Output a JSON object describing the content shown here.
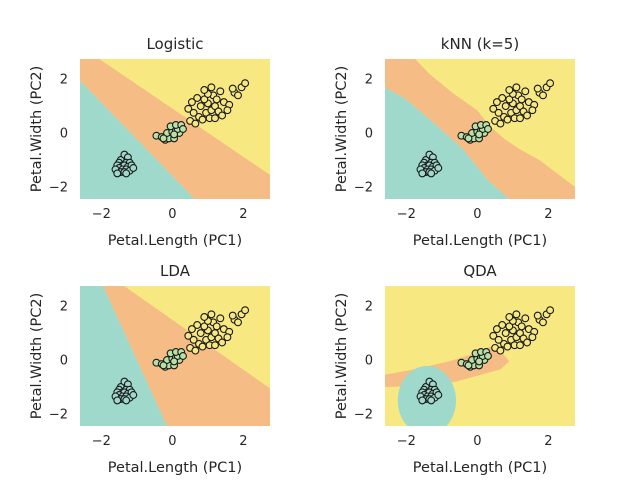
{
  "colors": {
    "setosa_region": "#9ed9cc",
    "versicolor_region": "#f6bc85",
    "virginica_region": "#f8e882",
    "setosa_point": "#9ed9cc",
    "versicolor_point": "#b9e0a5",
    "virginica_point": "#f8e882",
    "point_edge": "#1a1a1a"
  },
  "chart_data": [
    {
      "type": "scatter",
      "title": "Logistic",
      "xlabel": "Petal.Length (PC1)",
      "ylabel": "Petal.Width (PC2)",
      "xlim": [
        -2.6,
        2.75
      ],
      "ylim": [
        -2.45,
        2.75
      ],
      "xticks": [
        -2,
        0,
        2
      ],
      "yticks": [
        -2,
        0,
        2
      ],
      "xtick_labels": [
        "−2",
        "0",
        "2"
      ],
      "ytick_labels": [
        "−2",
        "0",
        "2"
      ],
      "regions": [
        {
          "class": "setosa",
          "polygon": [
            [
              -2.6,
              2.75
            ],
            [
              -2.6,
              -2.45
            ],
            [
              0.63,
              -2.45
            ],
            [
              -2.6,
              1.95
            ]
          ]
        },
        {
          "class": "versicolor",
          "polygon": [
            [
              -2.6,
              2.75
            ],
            [
              -2.6,
              1.95
            ],
            [
              0.63,
              -2.45
            ],
            [
              2.75,
              -2.45
            ],
            [
              2.75,
              -1.55
            ],
            [
              -2.05,
              2.75
            ]
          ]
        },
        {
          "class": "virginica",
          "polygon": [
            [
              -2.05,
              2.75
            ],
            [
              2.75,
              -1.55
            ],
            [
              2.75,
              2.75
            ]
          ]
        }
      ]
    },
    {
      "type": "scatter",
      "title": "kNN (k=5)",
      "xlabel": "Petal.Length (PC1)",
      "ylabel": "Petal.Width (PC2)",
      "xlim": [
        -2.6,
        2.75
      ],
      "ylim": [
        -2.45,
        2.75
      ],
      "xticks": [
        -2,
        0,
        2
      ],
      "yticks": [
        -2,
        0,
        2
      ],
      "xtick_labels": [
        "−2",
        "0",
        "2"
      ],
      "ytick_labels": [
        "−2",
        "0",
        "2"
      ],
      "regions": [
        {
          "class": "setosa",
          "polygon": [
            [
              -2.6,
              1.7
            ],
            [
              -2.6,
              -2.45
            ],
            [
              0.9,
              -2.45
            ],
            [
              0.3,
              -1.75
            ],
            [
              -0.4,
              -0.6
            ],
            [
              -1.2,
              0.35
            ],
            [
              -2.0,
              1.25
            ]
          ]
        },
        {
          "class": "versicolor",
          "polygon": [
            [
              -2.6,
              2.75
            ],
            [
              -2.6,
              1.7
            ],
            [
              -2.0,
              1.25
            ],
            [
              -1.2,
              0.35
            ],
            [
              -0.4,
              -0.6
            ],
            [
              0.3,
              -1.75
            ],
            [
              0.9,
              -2.45
            ],
            [
              2.75,
              -2.45
            ],
            [
              2.75,
              -2.0
            ],
            [
              1.75,
              -1.0
            ],
            [
              1.2,
              -0.6
            ],
            [
              0.8,
              -0.25
            ],
            [
              0.35,
              0.25
            ],
            [
              0.0,
              0.85
            ],
            [
              -0.7,
              1.5
            ],
            [
              -1.35,
              2.2
            ],
            [
              -1.75,
              2.75
            ]
          ]
        },
        {
          "class": "virginica",
          "polygon": [
            [
              -1.75,
              2.75
            ],
            [
              -1.35,
              2.2
            ],
            [
              -0.7,
              1.5
            ],
            [
              0.0,
              0.85
            ],
            [
              0.35,
              0.25
            ],
            [
              0.8,
              -0.25
            ],
            [
              1.2,
              -0.6
            ],
            [
              1.75,
              -1.0
            ],
            [
              2.75,
              -2.0
            ],
            [
              2.75,
              2.75
            ]
          ]
        }
      ]
    },
    {
      "type": "scatter",
      "title": "LDA",
      "xlabel": "Petal.Length (PC1)",
      "ylabel": "Petal.Width (PC2)",
      "xlim": [
        -2.6,
        2.75
      ],
      "ylim": [
        -2.45,
        2.75
      ],
      "xticks": [
        -2,
        0,
        2
      ],
      "yticks": [
        -2,
        0,
        2
      ],
      "xtick_labels": [
        "−2",
        "0",
        "2"
      ],
      "ytick_labels": [
        "−2",
        "0",
        "2"
      ],
      "regions": [
        {
          "class": "setosa",
          "polygon": [
            [
              -2.6,
              2.75
            ],
            [
              -2.6,
              -2.45
            ],
            [
              -0.15,
              -2.45
            ],
            [
              -1.95,
              2.75
            ]
          ]
        },
        {
          "class": "versicolor",
          "polygon": [
            [
              -1.95,
              2.75
            ],
            [
              -0.15,
              -2.45
            ],
            [
              2.75,
              -2.45
            ],
            [
              2.75,
              -1.05
            ],
            [
              -1.35,
              2.75
            ]
          ]
        },
        {
          "class": "virginica",
          "polygon": [
            [
              -1.35,
              2.75
            ],
            [
              2.75,
              -1.05
            ],
            [
              2.75,
              2.75
            ]
          ]
        }
      ]
    },
    {
      "type": "scatter",
      "title": "QDA",
      "xlabel": "Petal.Length (PC1)",
      "ylabel": "Petal.Width (PC2)",
      "xlim": [
        -2.6,
        2.75
      ],
      "ylim": [
        -2.45,
        2.75
      ],
      "xticks": [
        -2,
        0,
        2
      ],
      "yticks": [
        -2,
        0,
        2
      ],
      "xtick_labels": [
        "−2",
        "0",
        "2"
      ],
      "ytick_labels": [
        "−2",
        "0",
        "2"
      ],
      "regions": [
        {
          "class": "versicolor",
          "polygon": [
            [
              -2.6,
              -1.0
            ],
            [
              -2.6,
              -0.55
            ],
            [
              -1.8,
              -0.35
            ],
            [
              -0.8,
              -0.05
            ],
            [
              -0.2,
              0.2
            ],
            [
              0.35,
              0.5
            ],
            [
              0.65,
              0.35
            ],
            [
              0.9,
              -0.05
            ],
            [
              0.65,
              -0.35
            ],
            [
              0.1,
              -0.55
            ],
            [
              -0.6,
              -0.8
            ],
            [
              -1.4,
              -0.95
            ]
          ]
        },
        {
          "class": "setosa",
          "ellipse": {
            "cx": -1.42,
            "cy": -1.5,
            "rx": 0.82,
            "ry": 1.28
          }
        }
      ]
    }
  ],
  "points": {
    "setosa": [
      [
        -1.45,
        -1.0
      ],
      [
        -1.35,
        -0.8
      ],
      [
        -1.25,
        -0.9
      ],
      [
        -1.5,
        -1.1
      ],
      [
        -1.3,
        -1.1
      ],
      [
        -1.4,
        -1.2
      ],
      [
        -1.2,
        -1.1
      ],
      [
        -1.55,
        -1.2
      ],
      [
        -1.35,
        -1.2
      ],
      [
        -1.25,
        -1.25
      ],
      [
        -1.15,
        -1.2
      ],
      [
        -1.5,
        -1.3
      ],
      [
        -1.4,
        -1.35
      ],
      [
        -1.3,
        -1.35
      ],
      [
        -1.6,
        -1.35
      ],
      [
        -1.45,
        -1.45
      ],
      [
        -1.35,
        -1.45
      ],
      [
        -1.2,
        -1.4
      ],
      [
        -1.1,
        -1.3
      ],
      [
        -1.55,
        -1.5
      ],
      [
        -1.3,
        -1.5
      ]
    ],
    "versicolor": [
      [
        -0.45,
        -0.1
      ],
      [
        -0.3,
        -0.15
      ],
      [
        -0.2,
        -0.25
      ],
      [
        -0.1,
        -0.2
      ],
      [
        0.05,
        -0.2
      ],
      [
        -0.15,
        0.0
      ],
      [
        0.0,
        0.05
      ],
      [
        0.1,
        0.1
      ],
      [
        0.2,
        0.0
      ],
      [
        0.15,
        0.15
      ],
      [
        -0.05,
        0.25
      ],
      [
        0.1,
        0.3
      ],
      [
        0.25,
        0.3
      ],
      [
        0.3,
        0.15
      ],
      [
        0.05,
        -0.05
      ],
      [
        -0.25,
        -0.2
      ]
    ],
    "virginica": [
      [
        0.5,
        0.45
      ],
      [
        0.65,
        0.35
      ],
      [
        0.75,
        0.6
      ],
      [
        0.85,
        0.5
      ],
      [
        0.95,
        0.75
      ],
      [
        1.05,
        0.55
      ],
      [
        1.1,
        0.85
      ],
      [
        1.2,
        1.0
      ],
      [
        1.3,
        0.8
      ],
      [
        1.0,
        1.1
      ],
      [
        0.8,
        1.0
      ],
      [
        0.9,
        1.25
      ],
      [
        1.15,
        1.4
      ],
      [
        1.25,
        1.25
      ],
      [
        1.35,
        1.55
      ],
      [
        1.0,
        1.45
      ],
      [
        1.45,
        1.15
      ],
      [
        1.6,
        1.05
      ],
      [
        1.75,
        1.5
      ],
      [
        1.85,
        1.4
      ],
      [
        1.7,
        1.65
      ],
      [
        1.95,
        1.7
      ],
      [
        1.1,
        1.7
      ],
      [
        0.9,
        1.6
      ],
      [
        0.7,
        1.3
      ],
      [
        0.55,
        1.15
      ],
      [
        0.45,
        0.9
      ],
      [
        0.6,
        0.75
      ],
      [
        1.4,
        0.65
      ],
      [
        1.55,
        0.85
      ],
      [
        2.05,
        1.85
      ],
      [
        1.2,
        0.55
      ]
    ]
  }
}
